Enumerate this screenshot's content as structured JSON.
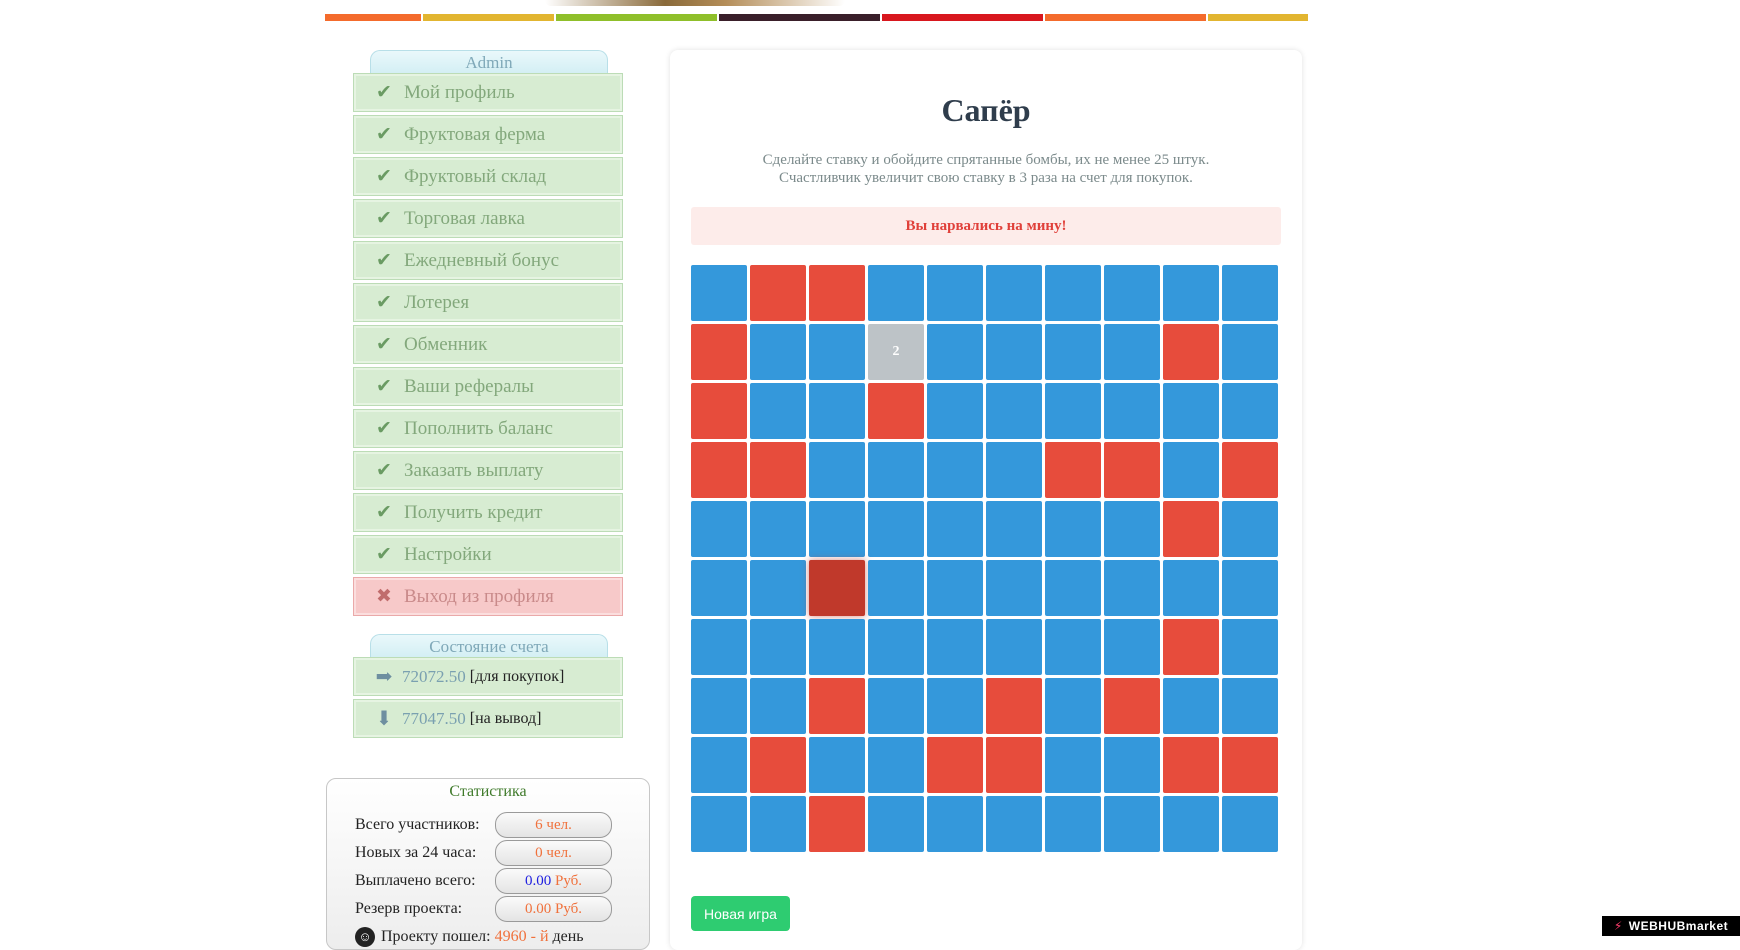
{
  "top_stripes": [
    "#f46b2c",
    "#e2b530",
    "#8fbf2a",
    "#3a1f2a",
    "#d8171e",
    "#f46b2c",
    "#e2b530"
  ],
  "sidebar": {
    "admin_title": "Admin",
    "menu": [
      {
        "label": "Мой профиль",
        "icon": "check-icon"
      },
      {
        "label": "Фруктовая ферма",
        "icon": "check-icon"
      },
      {
        "label": "Фруктовый склад",
        "icon": "check-icon"
      },
      {
        "label": "Торговая лавка",
        "icon": "check-icon"
      },
      {
        "label": "Ежедневный бонус",
        "icon": "check-icon"
      },
      {
        "label": "Лотерея",
        "icon": "check-icon"
      },
      {
        "label": "Обменник",
        "icon": "check-icon"
      },
      {
        "label": "Ваши рефералы",
        "icon": "check-icon"
      },
      {
        "label": "Пополнить баланс",
        "icon": "check-icon"
      },
      {
        "label": "Заказать выплату",
        "icon": "check-icon"
      },
      {
        "label": "Получить кредит",
        "icon": "check-icon"
      },
      {
        "label": "Настройки",
        "icon": "check-icon"
      }
    ],
    "logout": {
      "label": "Выход из профиля",
      "icon": "cross-icon"
    },
    "account_title": "Состояние счета",
    "balances": [
      {
        "amount": "72072.50",
        "tag": "[для покупок]",
        "icon": "arrow-right-icon"
      },
      {
        "amount": "77047.50",
        "tag": "[на вывод]",
        "icon": "arrow-down-icon"
      }
    ]
  },
  "stats": {
    "title": "Статистика",
    "rows": [
      {
        "label": "Всего участников:",
        "value": "6 чел."
      },
      {
        "label": "Новых за 24 часа:",
        "value": "0 чел."
      },
      {
        "label": "Выплачено всего:",
        "value": "0.00",
        "unit": " Руб."
      },
      {
        "label": "Резерв проекта:",
        "value": "0.00 Руб."
      }
    ],
    "project": {
      "prefix": "Проекту пошел:",
      "days": "4960 - й",
      "suffix": "день"
    }
  },
  "game": {
    "title": "Сапёр",
    "desc_line1": "Сделайте ставку и обойдите спрятанные бомбы, их не менее 25 штук.",
    "desc_line2": "Счастливчик увеличит свою ставку в 3 раза на счет для покупок.",
    "alert": "Вы нарвались на мину!",
    "grid_legend": {
      "b": "hidden",
      "m": "mine",
      "o": "opened",
      "h": "hit-mine"
    },
    "grid": [
      "bmmbbbbbbb",
      "mbbobbbbmb",
      "mbbmbbbbbb",
      "mmbbbbmmbm",
      "bbbbbbbbmb",
      "bbhbbbbbbb",
      "bbbbbbbbmb",
      "bbmbbmbmbb",
      "bmbbmmbbmm",
      "bbmbbbbbbb"
    ],
    "opened_value": "2",
    "new_game_label": "Новая игра"
  },
  "badge": {
    "icon": "bolt-icon",
    "text": "WEBHUBmarket"
  }
}
